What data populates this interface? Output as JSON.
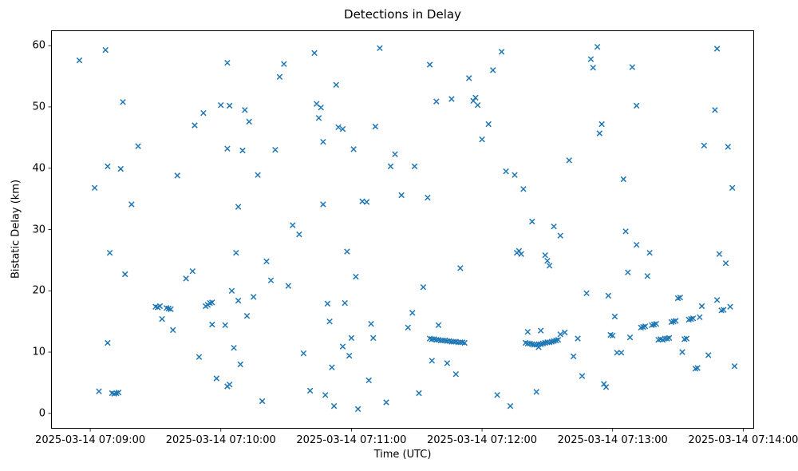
{
  "figure": {
    "title": "Detections in Delay",
    "xlabel": "Time (UTC)",
    "ylabel": "Bistatic Delay (km)"
  },
  "chart_data": {
    "type": "scatter",
    "title": "Detections in Delay",
    "xlabel": "Time (UTC)",
    "ylabel": "Bistatic Delay (km)",
    "marker": "x",
    "marker_color": "#1f77b4",
    "x_base_time": "2025-03-14 07:09:00",
    "x_unit": "seconds after 2025-03-14 07:09:00 UTC",
    "xlim_seconds": [
      -18,
      305
    ],
    "ylim": [
      -2.5,
      62.5
    ],
    "grid": false,
    "legend": "none",
    "x_ticks": [
      {
        "t": 0,
        "label": "2025-03-14 07:09:00"
      },
      {
        "t": 60,
        "label": "2025-03-14 07:10:00"
      },
      {
        "t": 120,
        "label": "2025-03-14 07:11:00"
      },
      {
        "t": 180,
        "label": "2025-03-14 07:12:00"
      },
      {
        "t": 240,
        "label": "2025-03-14 07:13:00"
      },
      {
        "t": 300,
        "label": "2025-03-14 07:14:00"
      }
    ],
    "y_ticks": [
      0,
      10,
      20,
      30,
      40,
      50,
      60
    ],
    "points": [
      [
        -5,
        57.6
      ],
      [
        2,
        36.8
      ],
      [
        4,
        3.6
      ],
      [
        7,
        59.3
      ],
      [
        8,
        40.3
      ],
      [
        8,
        11.5
      ],
      [
        9,
        26.2
      ],
      [
        10,
        3.3
      ],
      [
        11,
        3.2
      ],
      [
        12,
        3.3
      ],
      [
        13,
        3.4
      ],
      [
        14,
        39.9
      ],
      [
        15,
        50.8
      ],
      [
        16,
        22.7
      ],
      [
        19,
        34.1
      ],
      [
        22,
        43.6
      ],
      [
        30,
        17.4
      ],
      [
        31,
        17.3
      ],
      [
        32,
        17.5
      ],
      [
        33,
        15.4
      ],
      [
        35,
        17.2
      ],
      [
        36,
        17.1
      ],
      [
        37,
        17.0
      ],
      [
        38,
        13.6
      ],
      [
        40,
        38.8
      ],
      [
        44,
        22.0
      ],
      [
        47,
        23.2
      ],
      [
        48,
        47.0
      ],
      [
        50,
        9.2
      ],
      [
        52,
        49.0
      ],
      [
        53,
        17.5
      ],
      [
        54,
        17.7
      ],
      [
        55,
        18.0
      ],
      [
        56,
        18.1
      ],
      [
        56,
        14.5
      ],
      [
        58,
        5.7
      ],
      [
        60,
        50.3
      ],
      [
        62,
        14.4
      ],
      [
        63,
        4.4
      ],
      [
        64,
        4.7
      ],
      [
        63,
        43.2
      ],
      [
        65,
        20.0
      ],
      [
        66,
        10.7
      ],
      [
        68,
        18.4
      ],
      [
        69,
        8.0
      ],
      [
        63,
        57.2
      ],
      [
        64,
        50.2
      ],
      [
        67,
        26.2
      ],
      [
        68,
        33.7
      ],
      [
        70,
        42.9
      ],
      [
        71,
        49.5
      ],
      [
        73,
        47.6
      ],
      [
        72,
        15.9
      ],
      [
        75,
        19.0
      ],
      [
        77,
        38.9
      ],
      [
        79,
        2.0
      ],
      [
        81,
        24.8
      ],
      [
        83,
        21.7
      ],
      [
        85,
        43.0
      ],
      [
        87,
        54.9
      ],
      [
        89,
        57.0
      ],
      [
        91,
        20.8
      ],
      [
        93,
        30.7
      ],
      [
        96,
        29.2
      ],
      [
        98,
        9.8
      ],
      [
        101,
        3.7
      ],
      [
        103,
        58.8
      ],
      [
        104,
        50.5
      ],
      [
        105,
        48.2
      ],
      [
        106,
        49.9
      ],
      [
        107,
        44.3
      ],
      [
        107,
        34.1
      ],
      [
        108,
        3.0
      ],
      [
        109,
        17.9
      ],
      [
        110,
        15.0
      ],
      [
        111,
        7.5
      ],
      [
        112,
        1.2
      ],
      [
        113,
        53.6
      ],
      [
        114,
        46.7
      ],
      [
        116,
        46.4
      ],
      [
        116,
        10.9
      ],
      [
        117,
        18.0
      ],
      [
        118,
        26.4
      ],
      [
        119,
        9.4
      ],
      [
        120,
        12.3
      ],
      [
        121,
        43.1
      ],
      [
        122,
        22.3
      ],
      [
        123,
        0.7
      ],
      [
        125,
        34.6
      ],
      [
        127,
        34.5
      ],
      [
        128,
        5.4
      ],
      [
        129,
        14.6
      ],
      [
        130,
        12.3
      ],
      [
        131,
        46.8
      ],
      [
        133,
        59.6
      ],
      [
        136,
        1.8
      ],
      [
        138,
        40.3
      ],
      [
        140,
        42.3
      ],
      [
        143,
        35.6
      ],
      [
        146,
        14.0
      ],
      [
        148,
        16.4
      ],
      [
        149,
        40.3
      ],
      [
        151,
        3.3
      ],
      [
        153,
        20.6
      ],
      [
        155,
        35.2
      ],
      [
        156,
        56.9
      ],
      [
        157,
        8.6
      ],
      [
        159,
        50.9
      ],
      [
        166,
        51.3
      ],
      [
        168,
        6.4
      ],
      [
        156,
        12.2
      ],
      [
        157,
        12.1
      ],
      [
        158,
        12.1
      ],
      [
        159,
        12.0
      ],
      [
        160,
        12.0
      ],
      [
        161,
        11.9
      ],
      [
        162,
        11.9
      ],
      [
        163,
        11.9
      ],
      [
        164,
        11.8
      ],
      [
        165,
        11.8
      ],
      [
        166,
        11.7
      ],
      [
        167,
        11.7
      ],
      [
        168,
        11.7
      ],
      [
        169,
        11.6
      ],
      [
        170,
        11.6
      ],
      [
        171,
        11.6
      ],
      [
        172,
        11.5
      ],
      [
        160,
        14.4
      ],
      [
        164,
        8.2
      ],
      [
        170,
        23.7
      ],
      [
        174,
        54.7
      ],
      [
        176,
        51.0
      ],
      [
        177,
        51.5
      ],
      [
        178,
        50.3
      ],
      [
        180,
        44.7
      ],
      [
        183,
        47.2
      ],
      [
        185,
        56.0
      ],
      [
        187,
        3.0
      ],
      [
        189,
        59.0
      ],
      [
        191,
        39.5
      ],
      [
        193,
        1.2
      ],
      [
        195,
        38.9
      ],
      [
        196,
        26.2
      ],
      [
        197,
        26.5
      ],
      [
        198,
        26.0
      ],
      [
        199,
        36.6
      ],
      [
        201,
        13.3
      ],
      [
        203,
        31.3
      ],
      [
        205,
        3.5
      ],
      [
        207,
        13.5
      ],
      [
        209,
        25.8
      ],
      [
        210,
        24.9
      ],
      [
        211,
        24.1
      ],
      [
        213,
        30.5
      ],
      [
        216,
        29.0
      ],
      [
        200,
        11.5
      ],
      [
        201,
        11.4
      ],
      [
        202,
        11.4
      ],
      [
        203,
        11.3
      ],
      [
        204,
        11.2
      ],
      [
        205,
        11.2
      ],
      [
        206,
        11.3
      ],
      [
        207,
        11.3
      ],
      [
        208,
        11.4
      ],
      [
        209,
        11.5
      ],
      [
        210,
        11.6
      ],
      [
        211,
        11.6
      ],
      [
        212,
        11.7
      ],
      [
        213,
        11.8
      ],
      [
        214,
        11.9
      ],
      [
        215,
        12.0
      ],
      [
        206,
        10.8
      ],
      [
        216,
        12.9
      ],
      [
        218,
        13.2
      ],
      [
        220,
        41.3
      ],
      [
        222,
        9.3
      ],
      [
        224,
        12.2
      ],
      [
        226,
        6.1
      ],
      [
        228,
        19.6
      ],
      [
        230,
        57.8
      ],
      [
        231,
        56.4
      ],
      [
        233,
        59.8
      ],
      [
        234,
        45.7
      ],
      [
        235,
        47.2
      ],
      [
        236,
        4.8
      ],
      [
        237,
        4.3
      ],
      [
        238,
        19.2
      ],
      [
        239,
        12.8
      ],
      [
        240,
        12.7
      ],
      [
        241,
        15.8
      ],
      [
        242,
        9.9
      ],
      [
        244,
        9.9
      ],
      [
        245,
        38.2
      ],
      [
        246,
        29.7
      ],
      [
        247,
        23.0
      ],
      [
        248,
        12.4
      ],
      [
        249,
        56.5
      ],
      [
        251,
        50.2
      ],
      [
        251,
        27.5
      ],
      [
        253,
        14.0
      ],
      [
        254,
        14.1
      ],
      [
        255,
        14.2
      ],
      [
        256,
        22.4
      ],
      [
        257,
        26.2
      ],
      [
        258,
        14.4
      ],
      [
        259,
        14.5
      ],
      [
        260,
        14.6
      ],
      [
        261,
        12.0
      ],
      [
        262,
        12.1
      ],
      [
        263,
        12.0
      ],
      [
        264,
        12.2
      ],
      [
        265,
        12.2
      ],
      [
        266,
        12.3
      ],
      [
        267,
        14.9
      ],
      [
        268,
        15.0
      ],
      [
        269,
        15.1
      ],
      [
        270,
        18.8
      ],
      [
        271,
        18.9
      ],
      [
        272,
        10.0
      ],
      [
        273,
        12.1
      ],
      [
        274,
        12.2
      ],
      [
        275,
        15.3
      ],
      [
        276,
        15.4
      ],
      [
        277,
        15.5
      ],
      [
        278,
        7.3
      ],
      [
        279,
        7.4
      ],
      [
        280,
        15.7
      ],
      [
        281,
        17.5
      ],
      [
        282,
        43.7
      ],
      [
        284,
        9.5
      ],
      [
        287,
        49.5
      ],
      [
        288,
        18.5
      ],
      [
        289,
        26.0
      ],
      [
        290,
        16.8
      ],
      [
        291,
        16.9
      ],
      [
        292,
        24.5
      ],
      [
        293,
        43.5
      ],
      [
        294,
        17.4
      ],
      [
        288,
        59.5
      ],
      [
        295,
        36.8
      ],
      [
        296,
        7.7
      ]
    ]
  }
}
